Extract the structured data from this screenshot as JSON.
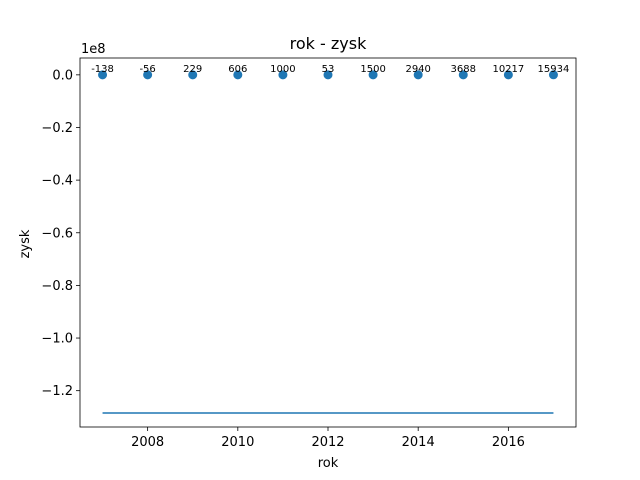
{
  "chart_data": {
    "type": "scatter",
    "title": "rok - zysk",
    "xlabel": "rok",
    "ylabel": "zysk",
    "offset_text": "1e8",
    "xlim": [
      2006.5,
      2017.5
    ],
    "ylim": [
      -133800000,
      6400000
    ],
    "x_ticks": [
      2008,
      2010,
      2012,
      2014,
      2016
    ],
    "x_tick_labels": [
      "2008",
      "2010",
      "2012",
      "2014",
      "2016"
    ],
    "y_ticks": [
      0,
      -20000000,
      -40000000,
      -60000000,
      -80000000,
      -100000000,
      -120000000
    ],
    "y_tick_labels": [
      "0.0",
      "−0.2",
      "−0.4",
      "−0.6",
      "−0.8",
      "−1.0",
      "−1.2"
    ],
    "grid": false,
    "points": {
      "x": [
        2007,
        2008,
        2009,
        2010,
        2011,
        2012,
        2013,
        2014,
        2015,
        2016,
        2017
      ],
      "y": [
        -138,
        -56,
        229,
        606,
        1000,
        53,
        1500,
        2940,
        3688,
        10217,
        15934
      ],
      "labels": [
        "-138",
        "-56",
        "229",
        "606",
        "1000",
        "53",
        "1500",
        "2940",
        "3688",
        "10217",
        "15934"
      ],
      "color": "#1f77b4"
    },
    "line": {
      "x": [
        2007,
        2017
      ],
      "y": [
        -128500000,
        -128500000
      ],
      "color": "#1f77b4"
    }
  }
}
